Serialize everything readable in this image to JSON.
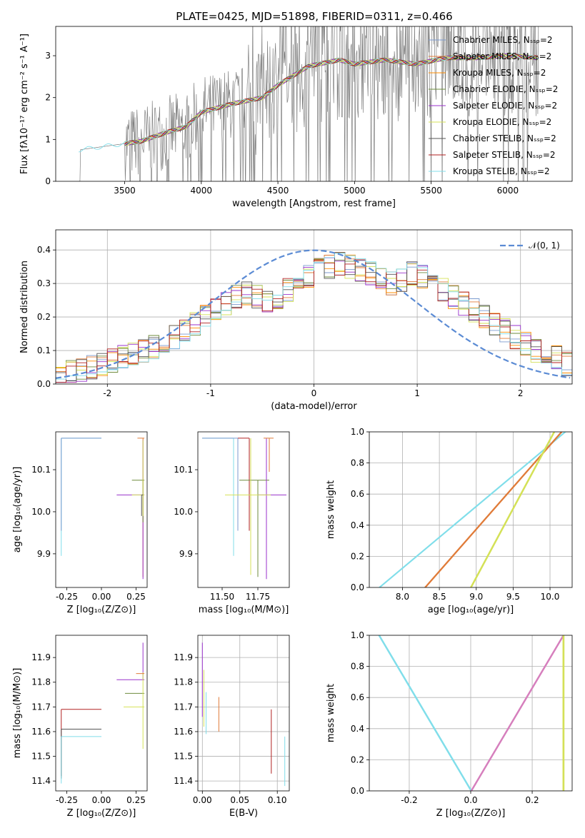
{
  "figure_title": "PLATE=0425, MJD=51898, FIBERID=0311, z=0.466",
  "colors": {
    "series": [
      "#7b9acf",
      "#e07b39",
      "#ff8c00",
      "#6e8b3d",
      "#9932cc",
      "#d4e157",
      "#555555",
      "#b22222",
      "#80deea"
    ],
    "observed": "#808080",
    "gaussian": "#5b8bd4",
    "pink": "#d67fbd"
  },
  "chart_data": [
    {
      "id": "spectrum",
      "type": "line",
      "xlabel": "wavelength [Angstrom, rest frame]",
      "ylabel": "Flux [fλ10⁻¹⁷ erg cm⁻² s⁻¹ A⁻¹]",
      "xlim": [
        3050,
        6420
      ],
      "ylim": [
        0,
        3.7
      ],
      "xticks": [
        "3500",
        "4000",
        "4500",
        "5000",
        "5500",
        "6000"
      ],
      "yticks": [
        "0",
        "1",
        "2",
        "3"
      ],
      "grid": false,
      "legend_position": "top-right",
      "series": [
        {
          "name": "Chabrier MILES, Nₛₛₚ=2",
          "color": "#7b9acf"
        },
        {
          "name": "Salpeter MILES, Nₛₛₚ=2",
          "color": "#e07b39"
        },
        {
          "name": "Kroupa MILES, Nₛₛₚ=2",
          "color": "#ff8c00"
        },
        {
          "name": "Chabrier ELODIE, Nₛₛₚ=2",
          "color": "#6e8b3d"
        },
        {
          "name": "Salpeter ELODIE, Nₛₛₚ=2",
          "color": "#9932cc"
        },
        {
          "name": "Kroupa ELODIE, Nₛₛₚ=2",
          "color": "#d4e157"
        },
        {
          "name": "Chabrier STELIB, Nₛₛₚ=2",
          "color": "#555555"
        },
        {
          "name": "Salpeter STELIB, Nₛₛₚ=2",
          "color": "#b22222"
        },
        {
          "name": "Kroupa STELIB, Nₛₛₚ=2",
          "color": "#80deea"
        }
      ],
      "model_continuum": [
        [
          3200,
          0.75
        ],
        [
          3400,
          0.85
        ],
        [
          3600,
          0.95
        ],
        [
          3800,
          1.2
        ],
        [
          3900,
          1.3
        ],
        [
          4000,
          1.65
        ],
        [
          4200,
          1.85
        ],
        [
          4400,
          2.0
        ],
        [
          4500,
          2.3
        ],
        [
          4700,
          2.75
        ],
        [
          4900,
          2.9
        ],
        [
          5000,
          2.8
        ],
        [
          5200,
          2.9
        ],
        [
          5400,
          2.8
        ],
        [
          5600,
          2.95
        ],
        [
          5800,
          2.95
        ],
        [
          6000,
          3.0
        ],
        [
          6200,
          2.95
        ]
      ]
    },
    {
      "id": "residuals",
      "type": "histogram",
      "xlabel": "(data-model)/error",
      "ylabel": "Normed distribution",
      "xlim": [
        -2.5,
        2.5
      ],
      "ylim": [
        0,
        0.46
      ],
      "xticks": [
        "-2",
        "-1",
        "0",
        "1",
        "2"
      ],
      "yticks": [
        "0.0",
        "0.1",
        "0.2",
        "0.3",
        "0.4"
      ],
      "grid": true,
      "legend_position": "top-right",
      "legend": "𝒩(0, 1)",
      "bin_centers": [
        -2.45,
        -2.35,
        -2.25,
        -2.15,
        -2.05,
        -1.95,
        -1.85,
        -1.75,
        -1.65,
        -1.55,
        -1.45,
        -1.35,
        -1.25,
        -1.15,
        -1.05,
        -0.95,
        -0.85,
        -0.75,
        -0.65,
        -0.55,
        -0.45,
        -0.35,
        -0.25,
        -0.15,
        -0.05,
        0.05,
        0.15,
        0.25,
        0.35,
        0.45,
        0.55,
        0.65,
        0.75,
        0.85,
        0.95,
        1.05,
        1.15,
        1.25,
        1.35,
        1.45,
        1.55,
        1.65,
        1.75,
        1.85,
        1.95,
        2.05,
        2.15,
        2.25,
        2.35,
        2.45
      ],
      "hist_mean": [
        0.02,
        0.035,
        0.04,
        0.05,
        0.06,
        0.07,
        0.08,
        0.09,
        0.1,
        0.11,
        0.13,
        0.14,
        0.16,
        0.18,
        0.2,
        0.22,
        0.24,
        0.26,
        0.27,
        0.26,
        0.25,
        0.26,
        0.28,
        0.3,
        0.32,
        0.34,
        0.35,
        0.36,
        0.35,
        0.34,
        0.33,
        0.31,
        0.3,
        0.31,
        0.33,
        0.32,
        0.3,
        0.28,
        0.26,
        0.24,
        0.22,
        0.2,
        0.18,
        0.16,
        0.14,
        0.12,
        0.1,
        0.09,
        0.08,
        0.06
      ],
      "gaussian": {
        "mu": 0,
        "sigma": 1
      }
    },
    {
      "id": "age_vs_Z",
      "type": "errorbar",
      "xlabel": "Z [log₁₀(Z/Z⊙)]",
      "ylabel": "age  [log₁₀(age/yr)]",
      "xlim": [
        -0.33,
        0.33
      ],
      "ylim": [
        9.82,
        10.19
      ],
      "xticks": [
        "-0.25",
        "0.00",
        "0.25"
      ],
      "yticks": [
        "9.9",
        "10.0",
        "10.1"
      ],
      "grid": false
    },
    {
      "id": "age_vs_mass",
      "type": "errorbar",
      "xlabel": "mass [log₁₀(M/M⊙)]",
      "ylabel": "",
      "xlim": [
        11.33,
        11.97
      ],
      "ylim": [
        9.82,
        10.19
      ],
      "xticks": [
        "11.50",
        "11.75"
      ],
      "yticks": [
        "9.9",
        "10.0",
        "10.1"
      ],
      "grid": false
    },
    {
      "id": "massweight_vs_age",
      "type": "line",
      "xlabel": "age  [log₁₀(age/yr)]",
      "ylabel": "mass weight",
      "xlim": [
        7.55,
        10.3
      ],
      "ylim": [
        0,
        1
      ],
      "xticks": [
        "8.0",
        "8.5",
        "9.0",
        "9.5",
        "10.0"
      ],
      "yticks": [
        "0.0",
        "0.2",
        "0.4",
        "0.6",
        "0.8",
        "1.0"
      ],
      "grid": true,
      "lines": [
        {
          "x": [
            7.68,
            10.2
          ],
          "y": [
            0,
            1
          ],
          "color": "#80deea"
        },
        {
          "x": [
            8.3,
            10.15
          ],
          "y": [
            0,
            1
          ],
          "color": "#e07b39"
        },
        {
          "x": [
            8.92,
            10.05
          ],
          "y": [
            0,
            1
          ],
          "color": "#d4e157"
        }
      ]
    },
    {
      "id": "mass_vs_Z",
      "type": "errorbar",
      "xlabel": "Z [log₁₀(Z/Z⊙)]",
      "ylabel": "mass [log₁₀(M/M⊙)]",
      "xlim": [
        -0.33,
        0.33
      ],
      "ylim": [
        11.36,
        11.99
      ],
      "xticks": [
        "-0.25",
        "0.00",
        "0.25"
      ],
      "yticks": [
        "11.4",
        "11.5",
        "11.6",
        "11.7",
        "11.8",
        "11.9"
      ],
      "grid": false
    },
    {
      "id": "mass_vs_ebv",
      "type": "errorbar",
      "xlabel": "E(B-V)",
      "ylabel": "",
      "xlim": [
        -0.006,
        0.116
      ],
      "ylim": [
        11.36,
        11.99
      ],
      "xticks": [
        "0.00",
        "0.05",
        "0.10"
      ],
      "yticks": [
        "11.4",
        "11.5",
        "11.6",
        "11.7",
        "11.8",
        "11.9"
      ],
      "grid": true
    },
    {
      "id": "massweight_vs_Z",
      "type": "line",
      "xlabel": "Z [log₁₀(Z/Z⊙)]",
      "ylabel": "mass weight",
      "xlim": [
        -0.33,
        0.33
      ],
      "ylim": [
        0,
        1
      ],
      "xticks": [
        "-0.2",
        "0.0",
        "0.2"
      ],
      "yticks": [
        "0.0",
        "0.2",
        "0.4",
        "0.6",
        "0.8",
        "1.0"
      ],
      "grid": true,
      "lines": [
        {
          "x": [
            -0.3,
            0
          ],
          "y": [
            1,
            0
          ],
          "color": "#80deea"
        },
        {
          "x": [
            0,
            0.3
          ],
          "y": [
            0,
            1
          ],
          "color": "#d67fbd"
        },
        {
          "x": [
            0.3,
            0.3
          ],
          "y": [
            0,
            1
          ],
          "color": "#d4e157"
        }
      ]
    }
  ]
}
